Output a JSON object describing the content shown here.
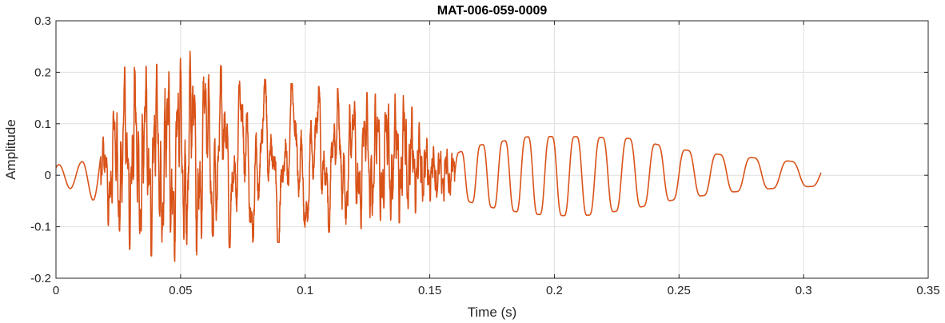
{
  "chart_data": {
    "type": "line",
    "title": "MAT-006-059-0009",
    "xlabel": "Time (s)",
    "ylabel": "Amplitude",
    "xlim": [
      0,
      0.35
    ],
    "ylim": [
      -0.2,
      0.3
    ],
    "xticks": [
      0,
      0.05,
      0.1,
      0.15,
      0.2,
      0.25,
      0.3,
      0.35
    ],
    "xtick_labels": [
      "0",
      "0.05",
      "0.1",
      "0.15",
      "0.2",
      "0.25",
      "0.3",
      "0.35"
    ],
    "yticks": [
      -0.2,
      -0.1,
      0,
      0.1,
      0.2,
      0.3
    ],
    "ytick_labels": [
      "-0.2",
      "-0.1",
      "0",
      "0.1",
      "0.2",
      "0.3"
    ],
    "grid": true,
    "series": [
      {
        "color": "#D95319",
        "duration": 0.307,
        "peak_envelope": {
          "t": [
            0,
            0.01,
            0.018,
            0.022,
            0.026,
            0.035,
            0.045,
            0.055,
            0.07,
            0.09,
            0.11,
            0.13,
            0.14,
            0.15,
            0.16,
            0.17,
            0.19,
            0.21,
            0.23,
            0.25,
            0.27,
            0.29,
            0.307
          ],
          "max": [
            0.02,
            0.025,
            0.06,
            0.12,
            0.21,
            0.21,
            0.22,
            0.25,
            0.2,
            0.18,
            0.17,
            0.16,
            0.16,
            0.06,
            0.05,
            0.07,
            0.09,
            0.09,
            0.085,
            0.06,
            0.045,
            0.035,
            0.025
          ],
          "min": [
            -0.02,
            -0.03,
            -0.06,
            -0.11,
            -0.14,
            -0.15,
            -0.17,
            -0.16,
            -0.14,
            -0.13,
            -0.11,
            -0.1,
            -0.09,
            -0.05,
            -0.05,
            -0.07,
            -0.09,
            -0.095,
            -0.08,
            -0.055,
            -0.04,
            -0.03,
            -0.025
          ]
        }
      }
    ]
  }
}
